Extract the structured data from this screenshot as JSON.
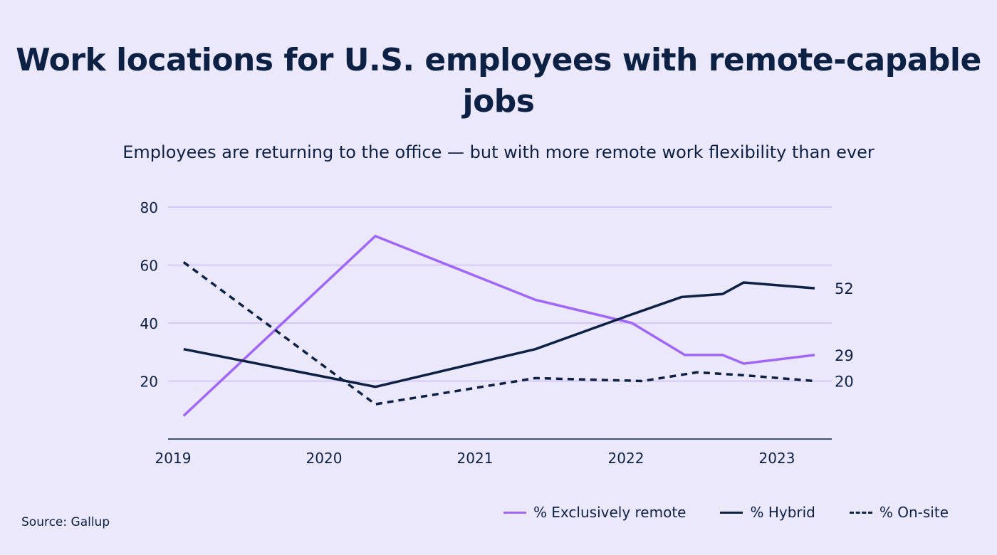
{
  "chart_data": {
    "type": "line",
    "title": "Work locations for U.S. employees with remote-capable jobs",
    "subtitle": "Employees are returning to the office — but with more remote work flexibility than ever",
    "source": "Source: Gallup",
    "ylim": [
      0,
      80
    ],
    "yticks": [
      20,
      40,
      60,
      80
    ],
    "xlim": [
      2019,
      2023.4
    ],
    "xticks": [
      2019,
      2020,
      2021,
      2022,
      2023
    ],
    "grid": true,
    "legend_position": "bottom-right",
    "series": [
      {
        "name": "% Exclusively remote",
        "color": "#a066f8",
        "dash": false,
        "end_label": "29",
        "x": [
          2019.07,
          2020.34,
          2021.4,
          2022.04,
          2022.39,
          2022.64,
          2022.78,
          2023.25
        ],
        "y": [
          8,
          70,
          48,
          40,
          29,
          29,
          26,
          29
        ]
      },
      {
        "name": "% Hybrid",
        "color": "#0d2144",
        "dash": false,
        "end_label": "52",
        "x": [
          2019.07,
          2020.34,
          2021.4,
          2022.04,
          2022.37,
          2022.64,
          2022.78,
          2023.25
        ],
        "y": [
          31,
          18,
          31,
          43,
          49,
          50,
          54,
          52
        ]
      },
      {
        "name": "% On-site",
        "color": "#0d2144",
        "dash": true,
        "end_label": "20",
        "x": [
          2019.07,
          2020.34,
          2021.4,
          2022.11,
          2022.47,
          2022.78,
          2023.25
        ],
        "y": [
          61,
          12,
          21,
          20,
          23,
          22,
          20
        ]
      }
    ]
  }
}
